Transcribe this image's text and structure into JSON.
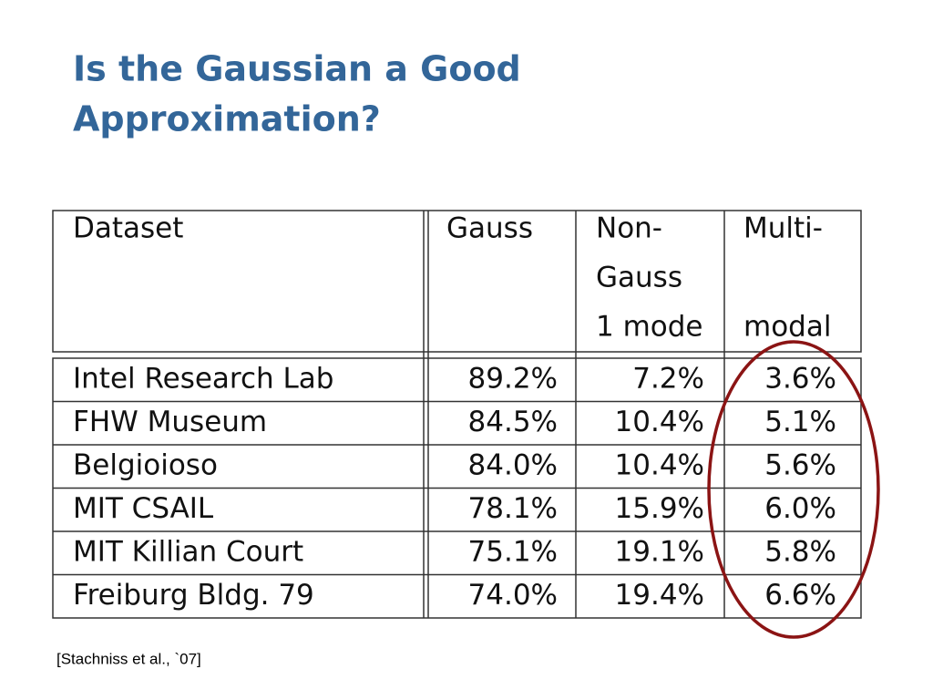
{
  "title": [
    "Is the Gaussian a Good",
    "Approximation?"
  ],
  "table": {
    "header": [
      [
        "Dataset"
      ],
      [
        "Gauss"
      ],
      [
        "Non-",
        "Gauss",
        "1 mode"
      ],
      [
        "Multi-",
        "",
        "modal"
      ]
    ],
    "rows": [
      [
        "Intel Research Lab",
        "89.2%",
        "7.2%",
        "3.6%"
      ],
      [
        "FHW Museum",
        "84.5%",
        "10.4%",
        "5.1%"
      ],
      [
        "Belgioioso",
        "84.0%",
        "10.4%",
        "5.6%"
      ],
      [
        "MIT CSAIL",
        "78.1%",
        "15.9%",
        "6.0%"
      ],
      [
        "MIT Killian Court",
        "75.1%",
        "19.1%",
        "5.8%"
      ],
      [
        "Freiburg Bldg. 79",
        "74.0%",
        "19.4%",
        "6.6%"
      ]
    ]
  },
  "citation": "[Stachniss et al., `07]"
}
